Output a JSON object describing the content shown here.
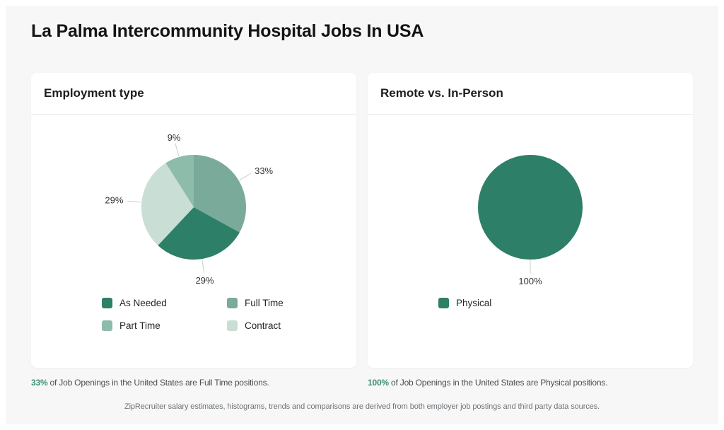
{
  "page": {
    "title": "La Palma Intercommunity Hospital Jobs In USA",
    "disclaimer": "ZipRecruiter salary estimates, histograms, trends and comparisons are derived from both employer job postings and third party data sources."
  },
  "colors": {
    "page_bg": "#f7f7f7",
    "card_bg": "#ffffff",
    "dark_green": "#2e7f67",
    "medium_green": "#7aab9a",
    "light_green": "#8ebcab",
    "pale_green": "#c9ded4",
    "highlight_text": "#3f9077",
    "connector": "#cccccc"
  },
  "chart_data": [
    {
      "type": "pie",
      "header": "Employment type",
      "slices": [
        {
          "name": "Full Time",
          "pct": 33,
          "color": "#7aab9a"
        },
        {
          "name": "As Needed",
          "pct": 29,
          "color": "#2e7f67"
        },
        {
          "name": "Contract",
          "pct": 29,
          "color": "#c9ded4"
        },
        {
          "name": "Part Time",
          "pct": 9,
          "color": "#8ebcab"
        }
      ],
      "data_labels": [
        "33%",
        "29%",
        "29%",
        "9%"
      ],
      "legend": [
        {
          "label": "As Needed",
          "color": "#2e7f67"
        },
        {
          "label": "Full Time",
          "color": "#7aab9a"
        },
        {
          "label": "Part Time",
          "color": "#8ebcab"
        },
        {
          "label": "Contract",
          "color": "#c9ded4"
        }
      ],
      "legend_position": "bottom",
      "footnote": {
        "highlight": "33%",
        "text": " of Job Openings in the United States are Full Time positions."
      }
    },
    {
      "type": "pie",
      "header": "Remote vs. In-Person",
      "slices": [
        {
          "name": "Physical",
          "pct": 100,
          "color": "#2e7f67"
        }
      ],
      "data_labels": [
        "100%"
      ],
      "legend": [
        {
          "label": "Physical",
          "color": "#2e7f67"
        }
      ],
      "legend_position": "bottom",
      "footnote": {
        "highlight": "100%",
        "text": " of Job Openings in the United States are Physical positions."
      }
    }
  ]
}
